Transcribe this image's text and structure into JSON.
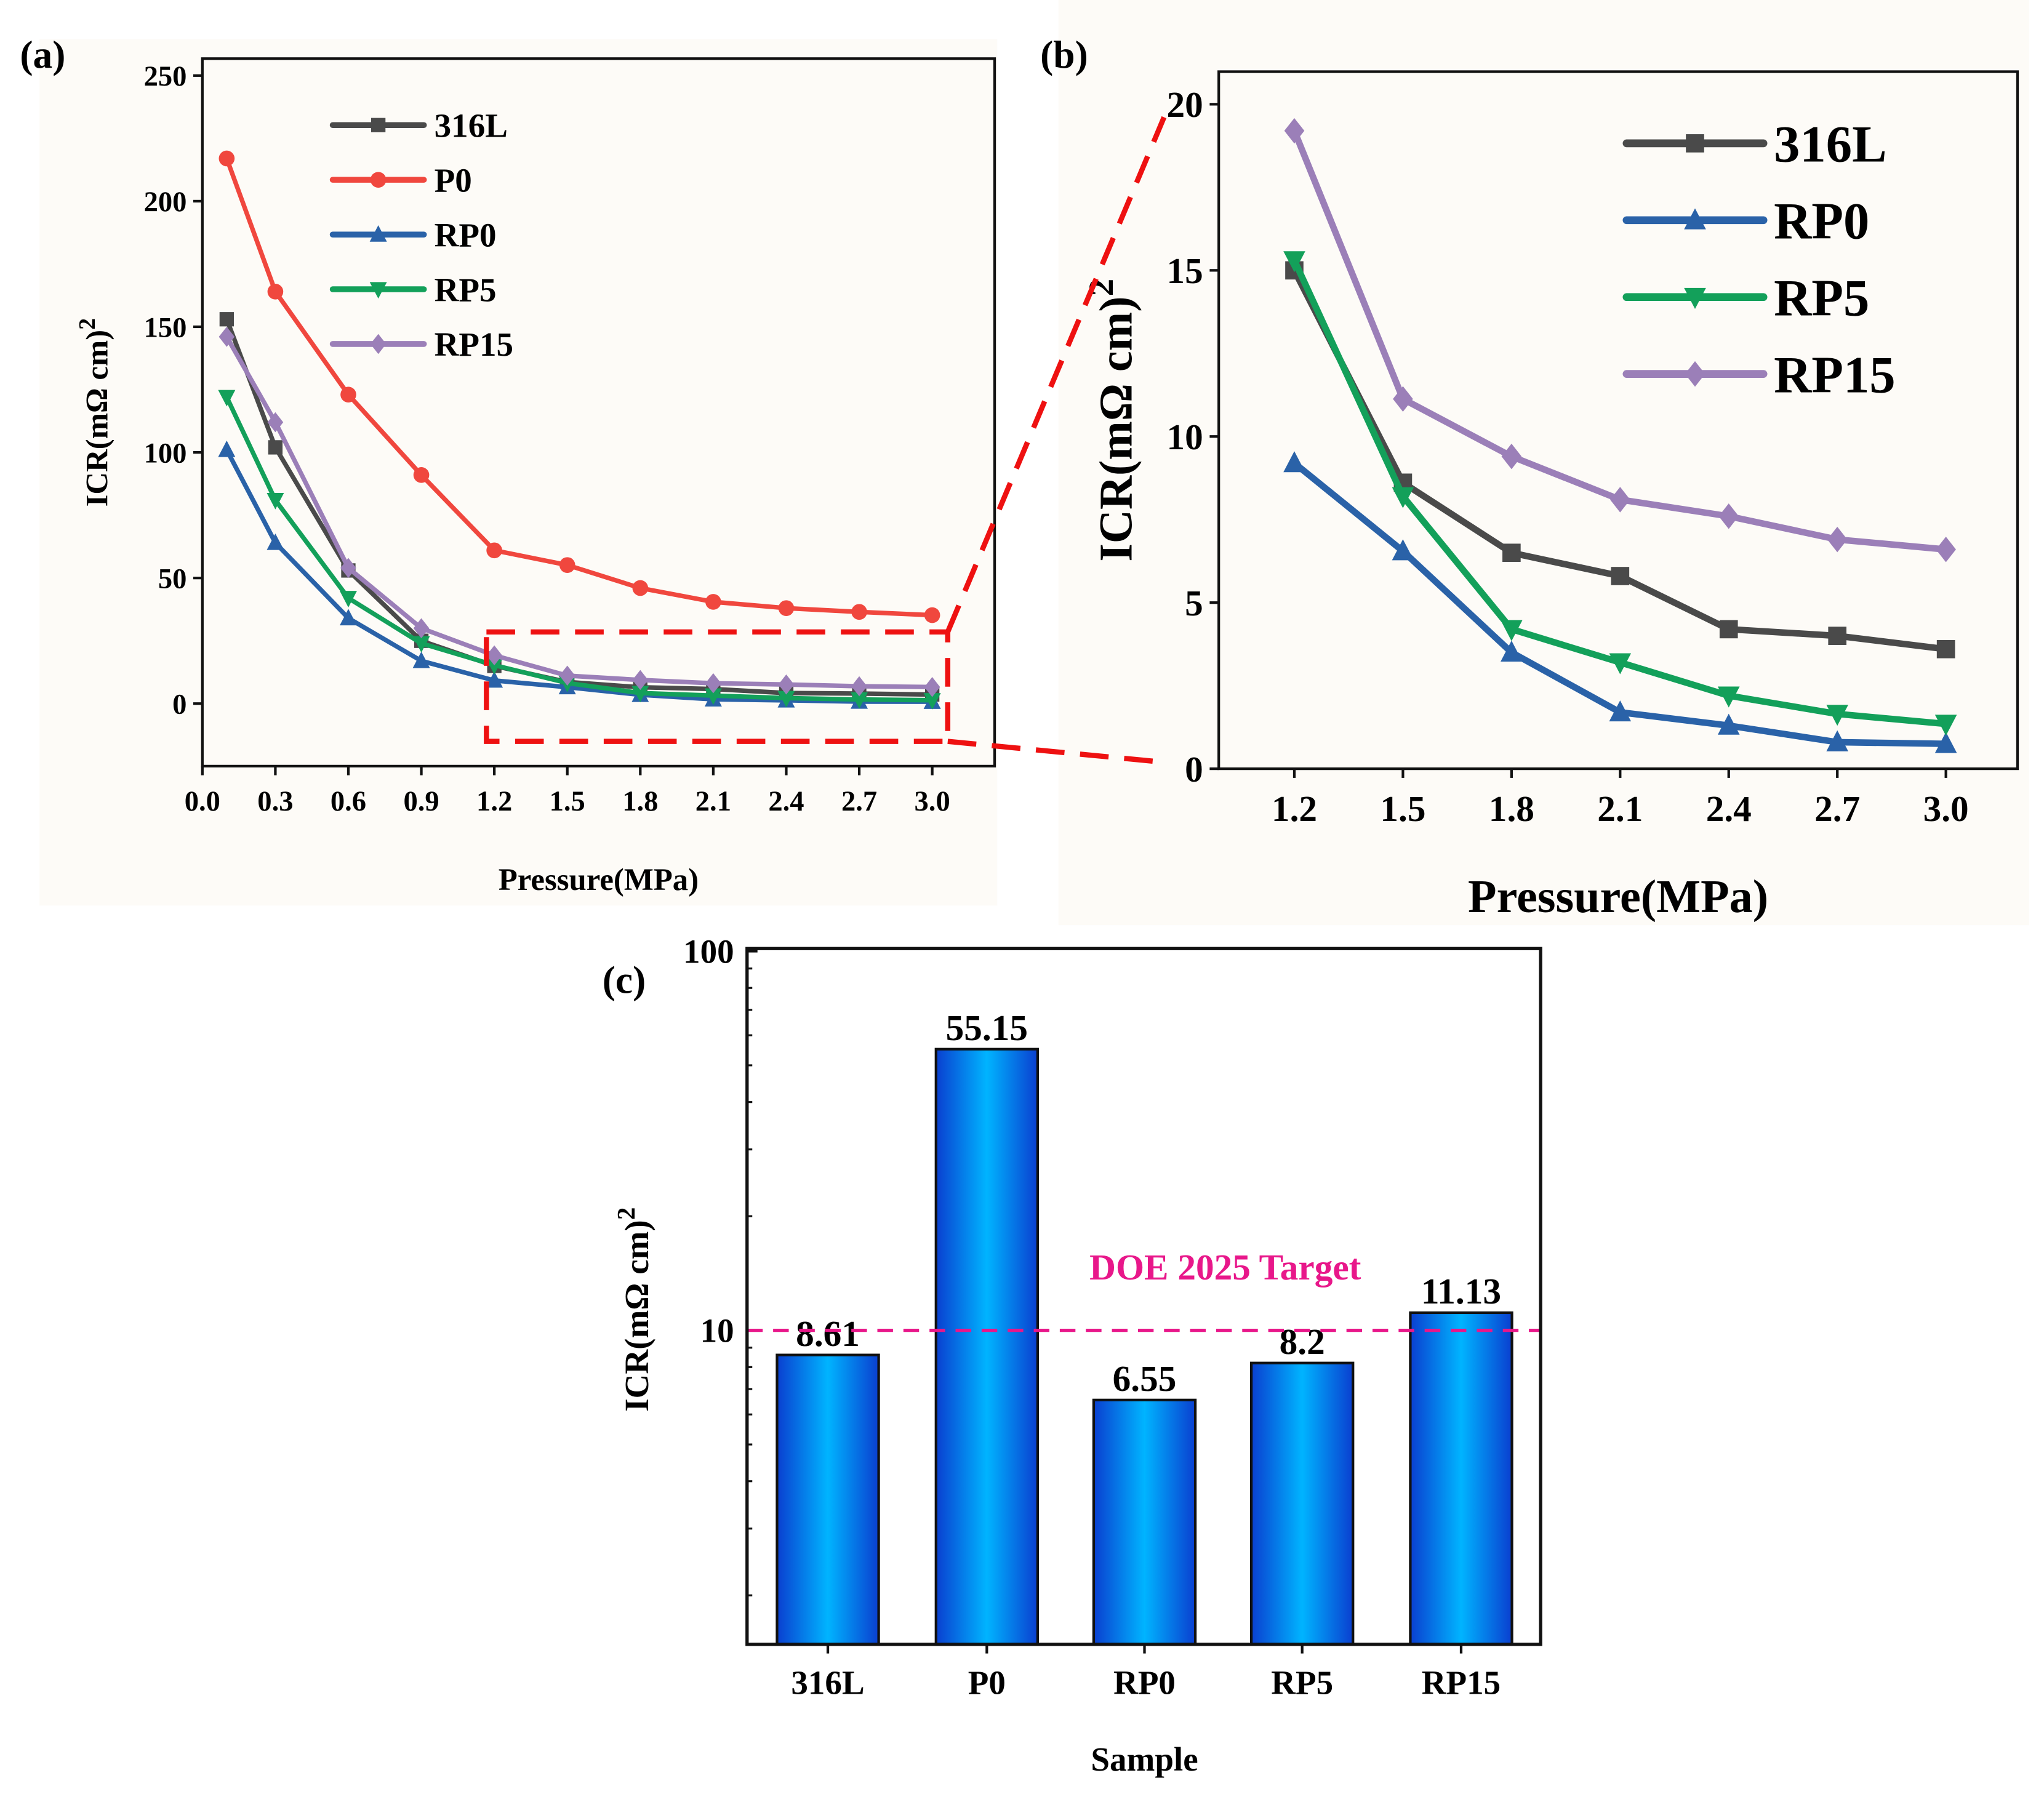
{
  "chart_data": [
    {
      "panel": "(a)",
      "type": "line",
      "xlabel": "Pressure(MPa)",
      "ylabel": "ICR(mΩ cm2)",
      "xlim": [
        0.0,
        3.2
      ],
      "ylim": [
        -25,
        250
      ],
      "xticks": [
        "0.0",
        "0.3",
        "0.6",
        "0.9",
        "1.2",
        "1.5",
        "1.8",
        "2.1",
        "2.4",
        "2.7",
        "3.0"
      ],
      "yticks": [
        "0",
        "50",
        "100",
        "150",
        "200",
        "250"
      ],
      "legend_position": "top-left",
      "x": [
        0.1,
        0.3,
        0.6,
        0.9,
        1.2,
        1.5,
        1.8,
        2.1,
        2.4,
        2.7,
        3.0
      ],
      "series": [
        {
          "name": "316L",
          "color": "#4a4a4a",
          "marker": "square",
          "values": [
            153,
            102,
            53,
            25,
            15,
            8.61,
            6.5,
            5.8,
            4.2,
            4.0,
            3.6
          ]
        },
        {
          "name": "P0",
          "color": "#f0473e",
          "marker": "circle",
          "values": [
            217,
            164,
            123,
            91,
            61,
            55.15,
            46,
            40.5,
            38,
            36.5,
            35.2
          ]
        },
        {
          "name": "RP0",
          "color": "#2a62a8",
          "marker": "triangle-up",
          "values": [
            101,
            64,
            34,
            17,
            9.2,
            6.55,
            3.5,
            1.7,
            1.3,
            0.8,
            0.75
          ]
        },
        {
          "name": "RP5",
          "color": "#13a05a",
          "marker": "triangle-down",
          "values": [
            122,
            81,
            42,
            24,
            15.3,
            8.2,
            4.2,
            3.2,
            2.2,
            1.65,
            1.35
          ]
        },
        {
          "name": "RP15",
          "color": "#9b7fb8",
          "marker": "diamond",
          "values": [
            146,
            112,
            54,
            30,
            19.2,
            11.13,
            9.4,
            8.1,
            7.6,
            6.9,
            6.6
          ]
        }
      ]
    },
    {
      "panel": "(b)",
      "type": "line",
      "xlabel": "Pressure(MPa)",
      "ylabel": "ICR(mΩ cm2)",
      "xlim": [
        1.0,
        3.2
      ],
      "ylim": [
        0,
        21
      ],
      "xticks": [
        "1.2",
        "1.5",
        "1.8",
        "2.1",
        "2.4",
        "2.7",
        "3.0"
      ],
      "yticks": [
        "0",
        "5",
        "10",
        "15",
        "20"
      ],
      "legend_position": "top-right",
      "x": [
        1.2,
        1.5,
        1.8,
        2.1,
        2.4,
        2.7,
        3.0
      ],
      "series": [
        {
          "name": "316L",
          "color": "#4a4a4a",
          "marker": "square",
          "values": [
            15.0,
            8.61,
            6.5,
            5.8,
            4.2,
            4.0,
            3.6
          ]
        },
        {
          "name": "RP0",
          "color": "#2a62a8",
          "marker": "triangle-up",
          "values": [
            9.2,
            6.55,
            3.5,
            1.7,
            1.3,
            0.8,
            0.75
          ]
        },
        {
          "name": "RP5",
          "color": "#13a05a",
          "marker": "triangle-down",
          "values": [
            15.3,
            8.2,
            4.2,
            3.2,
            2.2,
            1.65,
            1.35
          ]
        },
        {
          "name": "RP15",
          "color": "#9b7fb8",
          "marker": "diamond",
          "values": [
            19.2,
            11.13,
            9.4,
            8.1,
            7.6,
            6.9,
            6.6
          ]
        }
      ]
    },
    {
      "panel": "(c)",
      "type": "bar",
      "xlabel": "Sample",
      "ylabel": "ICR(mΩ cm2)",
      "yscale": "log",
      "ylim": [
        1.5,
        100
      ],
      "yticks": [
        "10",
        "100"
      ],
      "categories": [
        "316L",
        "P0",
        "RP0",
        "RP5",
        "RP15"
      ],
      "values": [
        8.61,
        55.15,
        6.55,
        8.2,
        11.13
      ],
      "labels": [
        "8.61",
        "55.15",
        "6.55",
        "8.2",
        "11.13"
      ],
      "reference_line": {
        "value": 10,
        "label": "DOE 2025 Target",
        "color": "#e8178a"
      }
    }
  ]
}
